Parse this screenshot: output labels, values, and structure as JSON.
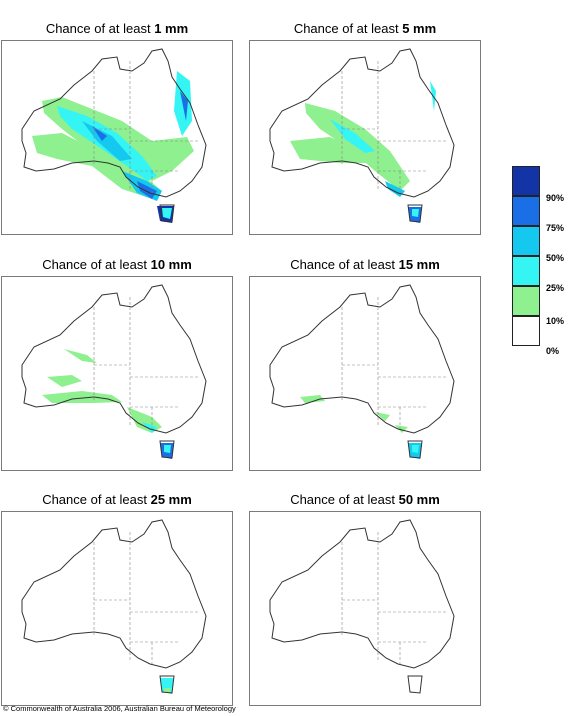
{
  "panels": [
    {
      "prefix": "Chance of at least ",
      "amount": "1 mm"
    },
    {
      "prefix": "Chance of at least ",
      "amount": "5 mm"
    },
    {
      "prefix": "Chance of at least ",
      "amount": "10 mm"
    },
    {
      "prefix": "Chance of at least ",
      "amount": "15 mm"
    },
    {
      "prefix": "Chance of at least ",
      "amount": "25 mm"
    },
    {
      "prefix": "Chance of at least ",
      "amount": "50 mm"
    }
  ],
  "legend": {
    "bins": [
      {
        "label": "90%",
        "color": "#1234a6"
      },
      {
        "label": "75%",
        "color": "#1a6fe6"
      },
      {
        "label": "50%",
        "color": "#14c8ef"
      },
      {
        "label": "25%",
        "color": "#34f4f4"
      },
      {
        "label": "10%",
        "color": "#8ef08e"
      },
      {
        "label": "0%",
        "color": "#ffffff"
      }
    ]
  },
  "footer": "© Commonwealth of Australia 2006, Australian Bureau of Meteorology"
}
